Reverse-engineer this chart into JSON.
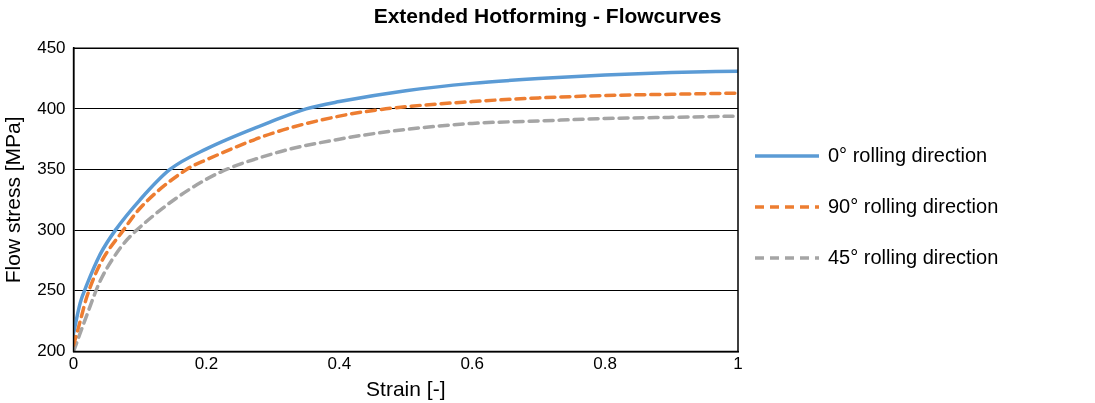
{
  "chart_data": {
    "type": "line",
    "title": "Extended Hotforming - Flowcurves",
    "xlabel": "Strain [-]",
    "ylabel": "Flow stress [MPa]",
    "xlim": [
      0,
      1
    ],
    "xticks": [
      0,
      0.2,
      0.4,
      0.6,
      0.8,
      1
    ],
    "ylim": [
      200,
      450
    ],
    "yticks": [
      200,
      250,
      300,
      350,
      400,
      450
    ],
    "grid": "y",
    "legend": "right",
    "marker": "none",
    "series": [
      {
        "name": "0° rolling direction",
        "color": "#5b9bd5",
        "line_style": "solid",
        "x": [
          0,
          0.01,
          0.02,
          0.04,
          0.063,
          0.1,
          0.145,
          0.2,
          0.3,
          0.35,
          0.4,
          0.5,
          0.6,
          0.7,
          0.8,
          0.9,
          1
        ],
        "values": [
          215,
          240,
          255,
          280,
          300,
          325,
          350,
          367,
          390,
          400,
          406,
          415,
          421,
          425,
          428,
          430,
          431
        ]
      },
      {
        "name": "90° rolling direction",
        "color": "#ed7d31",
        "line_style": "dashed",
        "x": [
          0,
          0.01,
          0.02,
          0.04,
          0.075,
          0.1,
          0.17,
          0.2,
          0.3,
          0.4,
          0.47,
          0.6,
          0.7,
          0.8,
          0.9,
          1
        ],
        "values": [
          205,
          225,
          245,
          272,
          300,
          318,
          350,
          358,
          380,
          394,
          400,
          406,
          409,
          411,
          412,
          413
        ]
      },
      {
        "name": "45° rolling direction",
        "color": "#a5a5a5",
        "line_style": "dashed",
        "x": [
          0,
          0.02,
          0.04,
          0.07,
          0.095,
          0.2,
          0.3,
          0.4,
          0.5,
          0.6,
          0.7,
          0.8,
          0.9,
          1
        ],
        "values": [
          200,
          230,
          258,
          285,
          300,
          342,
          363,
          375,
          383,
          388,
          390,
          392,
          393,
          394
        ]
      }
    ]
  }
}
